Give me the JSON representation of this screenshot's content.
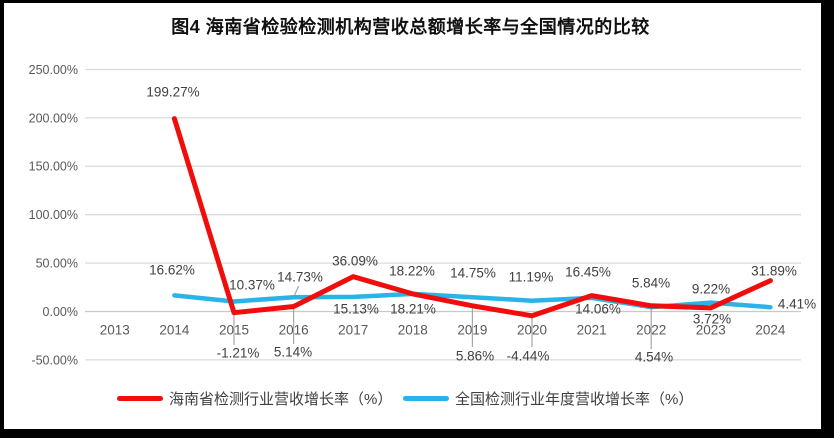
{
  "chart_data": {
    "type": "line",
    "title": "图4 海南省检验检测机构营收总额增长率与全国情况的比较",
    "categories": [
      "2013",
      "2014",
      "2015",
      "2016",
      "2017",
      "2018",
      "2019",
      "2020",
      "2021",
      "2022",
      "2023",
      "2024"
    ],
    "y_ticks": [
      "250.00%",
      "200.00%",
      "150.00%",
      "100.00%",
      "50.00%",
      "0.00%",
      "-50.00%"
    ],
    "ylim": [
      -50,
      250
    ],
    "grid": true,
    "legend_position": "bottom",
    "colors": {
      "hainan_red": "#F20D0D",
      "national_blue": "#29B3E6",
      "gridline": "#DCDCDC",
      "zero_line": "#C9C9C9",
      "leader_gray": "#A6A6A6",
      "label_text": "#404040",
      "axis_text": "#595959"
    },
    "series": [
      {
        "name": "海南省检测行业营收增长率（%）",
        "color": "#F20D0D",
        "values": [
          null,
          199.27,
          -1.21,
          5.14,
          36.09,
          18.22,
          5.86,
          -4.44,
          16.45,
          5.84,
          3.72,
          31.89
        ],
        "labels": [
          "",
          "199.27%",
          "-1.21%",
          "5.14%",
          "36.09%",
          "18.22%",
          "5.86%",
          "-4.44%",
          "16.45%",
          "5.84%",
          "3.72%",
          "31.89%"
        ]
      },
      {
        "name": "全国检测行业年度营收增长率（%）",
        "color": "#29B3E6",
        "values": [
          null,
          16.62,
          10.37,
          14.73,
          15.13,
          18.21,
          14.75,
          11.19,
          14.06,
          4.54,
          9.22,
          4.41
        ],
        "labels": [
          "",
          "16.62%",
          "10.37%",
          "14.73%",
          "15.13%",
          "18.21%",
          "14.75%",
          "11.19%",
          "14.06%",
          "4.54%",
          "9.22%",
          "4.41%"
        ]
      }
    ]
  }
}
